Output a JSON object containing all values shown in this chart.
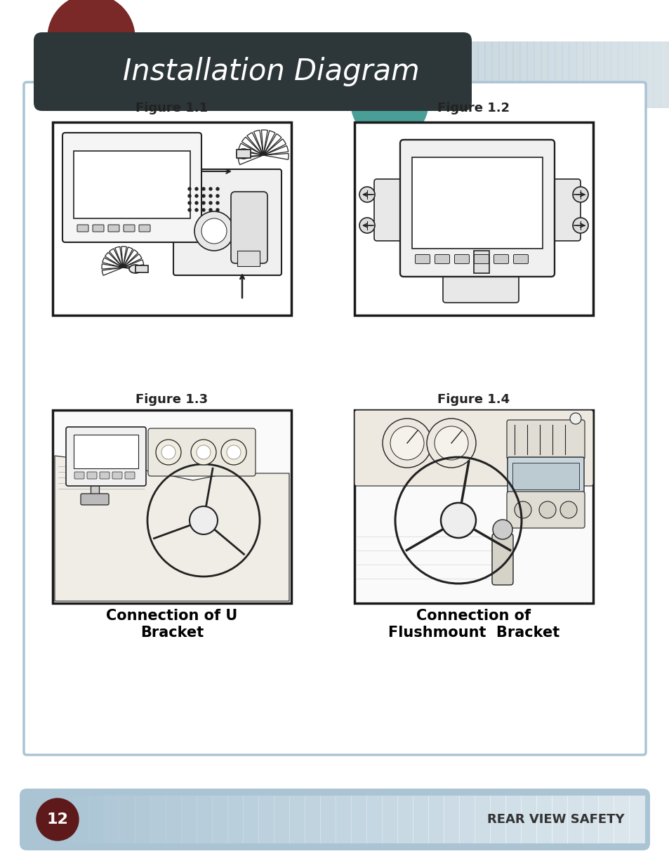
{
  "bg_color": "#ffffff",
  "title_text": "Installation Diagram",
  "title_bg_dark": "#2d3638",
  "title_bg_light": "#b8ccd6",
  "title_text_color": "#ffffff",
  "title_font_size": 30,
  "header_circle1_color": "#7a2828",
  "header_circle2_color": "#4a9e98",
  "content_border_color": "#aac4d4",
  "content_bg": "#ffffff",
  "fig_label_fontsize": 13,
  "fig_labels": [
    "Figure 1.1",
    "Figure 1.2",
    "Figure 1.3",
    "Figure 1.4"
  ],
  "caption1": "Connection of U\nBracket",
  "caption2": "Connection of\nFlushmount  Bracket",
  "caption_fontsize": 15,
  "footer_bg_left": "#aac4d4",
  "footer_bg_right": "#d8e8f0",
  "footer_circle_color": "#5e1a1a",
  "footer_page_num": "12",
  "footer_page_num_color": "#ffffff",
  "footer_text": "REAR VIEW SAFETY",
  "footer_text_color": "#333333",
  "footer_fontsize": 13,
  "img_border_color": "#1a1a1a",
  "img_border_lw": 2.5,
  "sketch_color": "#222222",
  "sketch_lw": 1.2
}
